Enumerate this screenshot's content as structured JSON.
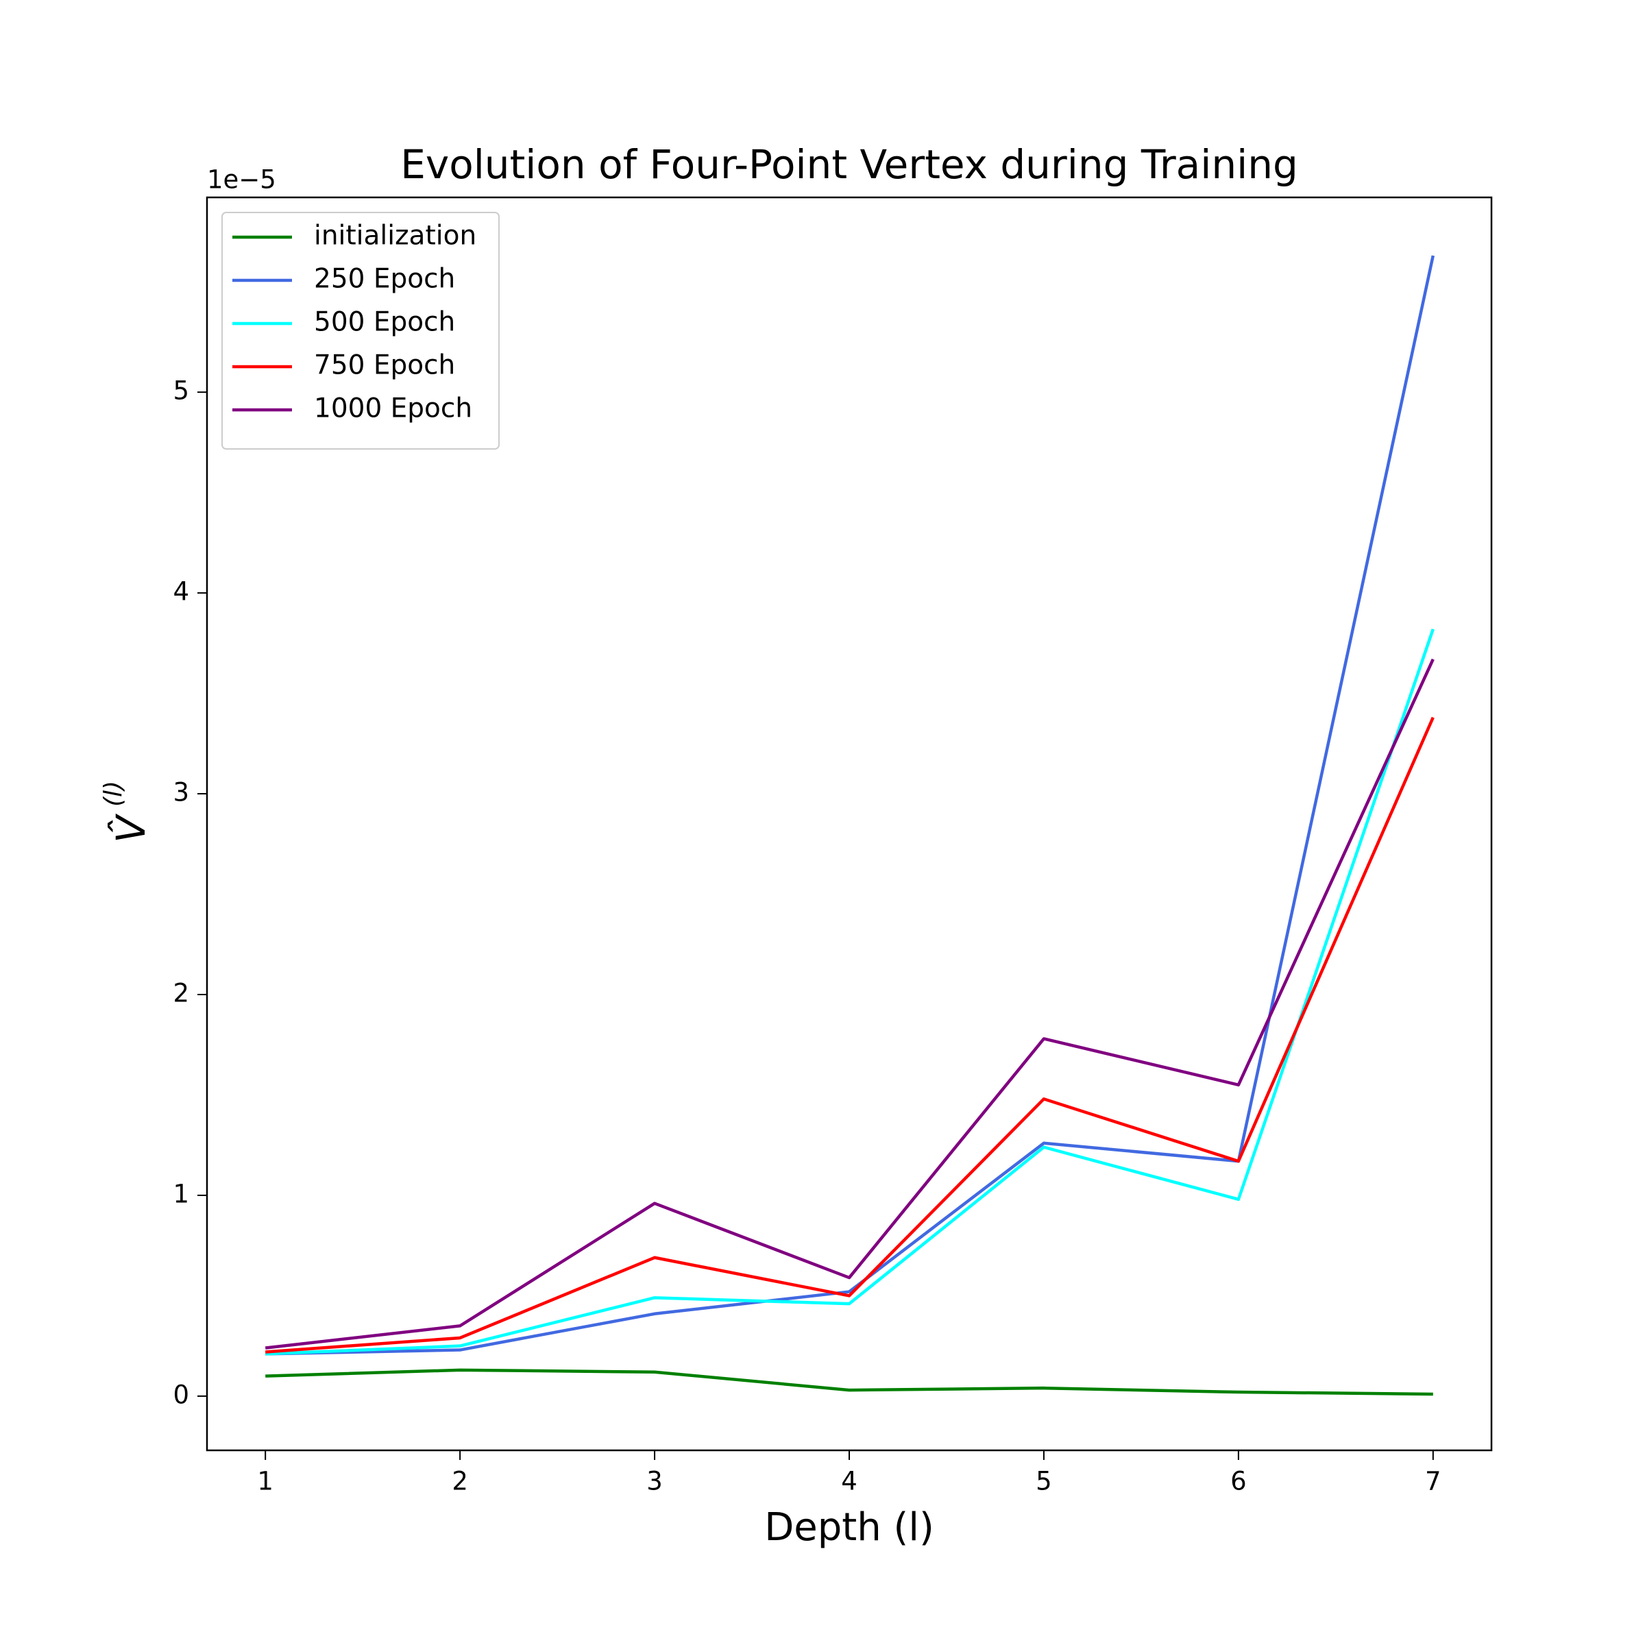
{
  "chart_data": {
    "type": "line",
    "title": "Evolution of Four-Point Vertex during Training",
    "xlabel": "Depth (l)",
    "ylabel": "V̂",
    "ylabel_superscript": "(l)",
    "y_offset_text": "1e−5",
    "x": [
      1,
      2,
      3,
      4,
      5,
      6,
      7
    ],
    "series": [
      {
        "name": "initialization",
        "color": "#008000",
        "values": [
          0.1,
          0.13,
          0.12,
          0.03,
          0.04,
          0.02,
          0.01
        ]
      },
      {
        "name": "250 Epoch",
        "color": "#4169e1",
        "values": [
          0.21,
          0.23,
          0.41,
          0.52,
          1.26,
          1.17,
          5.68
        ]
      },
      {
        "name": "500 Epoch",
        "color": "#00ffff",
        "values": [
          0.21,
          0.25,
          0.49,
          0.46,
          1.24,
          0.98,
          3.82
        ]
      },
      {
        "name": "750 Epoch",
        "color": "#ff0000",
        "values": [
          0.22,
          0.29,
          0.69,
          0.5,
          1.48,
          1.17,
          3.38
        ]
      },
      {
        "name": "1000 Epoch",
        "color": "#800080",
        "values": [
          0.24,
          0.35,
          0.96,
          0.59,
          1.78,
          1.55,
          3.67
        ]
      }
    ],
    "xlim": [
      0.7,
      7.3
    ],
    "ylim": [
      -0.27,
      5.97
    ],
    "xticks": [
      1,
      2,
      3,
      4,
      5,
      6,
      7
    ],
    "yticks": [
      0,
      1,
      2,
      3,
      4,
      5
    ],
    "grid": false,
    "legend": "upper left"
  }
}
